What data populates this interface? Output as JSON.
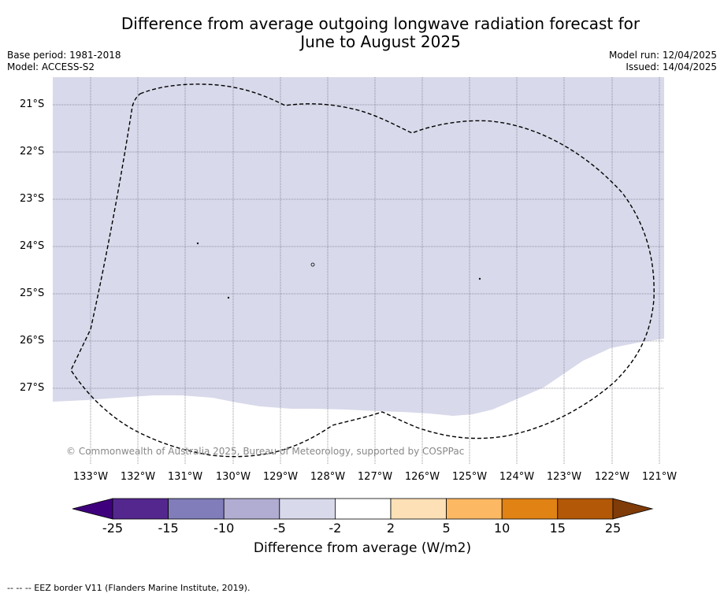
{
  "title_line1": "Difference from average outgoing longwave radiation forecast for",
  "title_line2": "June to August 2025",
  "base_period": "Base period: 1981-2018",
  "model": "Model: ACCESS-S2",
  "model_run": "Model run: 12/04/2025",
  "issued": "Issued: 14/04/2025",
  "map": {
    "lat_labels": [
      "21°S",
      "22°S",
      "23°S",
      "24°S",
      "25°S",
      "26°S",
      "27°S"
    ],
    "lon_labels": [
      "133°W",
      "132°W",
      "131°W",
      "130°W",
      "129°W",
      "128°W",
      "127°W",
      "126°W",
      "125°W",
      "124°W",
      "123°W",
      "122°W",
      "121°W"
    ],
    "copyright": "© Commonwealth of Australia 2025, Bureau of Meteorology, supported by COSPPac",
    "shaded_class_color": "#d8d9ea",
    "eez_line_style": "dashed"
  },
  "colorbar": {
    "colors": [
      "#3f007d",
      "#54278f",
      "#807dba",
      "#b1acd2",
      "#d8d9ea",
      "#ffffff",
      "#fee0b6",
      "#fdb863",
      "#e08214",
      "#b35806",
      "#7f3b08"
    ],
    "ticks": [
      "-25",
      "-15",
      "-10",
      "-5",
      "-2",
      "2",
      "5",
      "10",
      "15",
      "25"
    ],
    "label": "Difference from average (W/m2)"
  },
  "footnote": "--  --  -- EEZ border V11 (Flanders Marine Institute, 2019)."
}
